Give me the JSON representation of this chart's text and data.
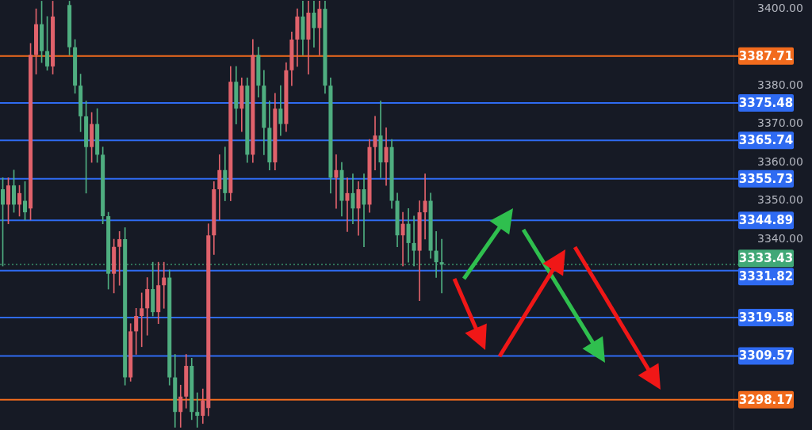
{
  "chart_data": {
    "type": "candlestick",
    "categories": [
      null,
      null,
      null,
      null,
      null,
      null,
      null,
      null,
      null,
      null,
      null,
      null,
      null,
      null,
      null,
      null,
      null,
      null,
      null,
      null,
      null,
      null,
      null,
      null,
      null,
      null,
      null,
      null,
      null,
      null,
      null,
      null,
      null,
      null,
      null,
      null,
      null,
      null,
      null,
      null,
      null,
      null,
      null,
      null,
      null,
      null,
      null,
      null,
      null,
      null,
      null,
      null,
      null,
      null,
      null,
      null,
      null,
      null,
      null,
      null,
      null,
      null,
      null,
      null,
      null,
      null,
      null,
      null,
      null,
      null,
      null,
      null,
      null,
      null,
      null,
      null,
      null,
      null,
      null,
      null,
      null,
      null,
      null,
      null,
      null,
      null,
      null,
      null,
      null,
      null,
      null,
      null,
      null,
      null,
      null,
      null,
      null,
      null,
      null,
      null,
      null,
      null,
      null,
      null,
      null,
      null,
      null,
      null,
      null,
      null,
      null,
      null,
      null,
      null,
      null,
      null,
      null,
      null,
      null,
      null,
      null,
      null,
      null,
      null,
      null,
      null,
      null,
      null,
      null,
      null,
      null,
      null
    ],
    "ohlc": [
      [
        3353,
        3356,
        3333,
        3349
      ],
      [
        3349,
        3356,
        3344,
        3354
      ],
      [
        3354,
        3358,
        3347,
        3349
      ],
      [
        3349,
        3354,
        3346,
        3352
      ],
      [
        3350,
        3355,
        3345,
        3347
      ],
      [
        3348,
        3391,
        3345,
        3388
      ],
      [
        3388,
        3400,
        3383,
        3396
      ],
      [
        3396,
        3402,
        3386,
        3389
      ],
      [
        3389,
        3398,
        3384,
        3385
      ],
      [
        3385,
        3402,
        3383,
        3398
      ],
      null,
      null,
      [
        3401,
        3402,
        3388,
        3390
      ],
      [
        3390,
        3392,
        3378,
        3380
      ],
      [
        3380,
        3383,
        3368,
        3372
      ],
      [
        3372,
        3376,
        3352,
        3364
      ],
      [
        3364,
        3373,
        3360,
        3370
      ],
      [
        3370,
        3374,
        3360,
        3362
      ],
      [
        3362,
        3364,
        3344,
        3346
      ],
      [
        3346,
        3347,
        3327,
        3331
      ],
      [
        3331,
        3340,
        3326,
        3338
      ],
      [
        3338,
        3342,
        3328,
        3340
      ],
      [
        3340,
        3343,
        3302,
        3304
      ],
      [
        3304,
        3318,
        3303,
        3316
      ],
      [
        3316,
        3322,
        3310,
        3320
      ],
      [
        3320,
        3326,
        3312,
        3322
      ],
      [
        3322,
        3330,
        3315,
        3327
      ],
      [
        3327,
        3334,
        3320,
        3321
      ],
      [
        3321,
        3334,
        3318,
        3328
      ],
      [
        3328,
        3334,
        3322,
        3330
      ],
      [
        3330,
        3332,
        3302,
        3304
      ],
      [
        3304,
        3310,
        3291,
        3295
      ],
      [
        3295,
        3302,
        3291,
        3299
      ],
      [
        3299,
        3310,
        3296,
        3307
      ],
      [
        3307,
        3309,
        3293,
        3295
      ],
      [
        3295,
        3300,
        3291,
        3294
      ],
      [
        3294,
        3301,
        3292,
        3298
      ],
      [
        3296,
        3344,
        3294,
        3341
      ],
      [
        3341,
        3355,
        3336,
        3353
      ],
      [
        3353,
        3362,
        3345,
        3358
      ],
      [
        3358,
        3364,
        3350,
        3352
      ],
      [
        3352,
        3385,
        3350,
        3381
      ],
      [
        3381,
        3385,
        3370,
        3374
      ],
      [
        3374,
        3382,
        3368,
        3380
      ],
      [
        3380,
        3382,
        3360,
        3362
      ],
      [
        3362,
        3392,
        3360,
        3388
      ],
      [
        3388,
        3390,
        3377,
        3380
      ],
      [
        3380,
        3384,
        3362,
        3369
      ],
      [
        3369,
        3376,
        3358,
        3360
      ],
      [
        3360,
        3378,
        3358,
        3374
      ],
      [
        3374,
        3380,
        3367,
        3370
      ],
      [
        3370,
        3386,
        3368,
        3384
      ],
      [
        3384,
        3394,
        3380,
        3392
      ],
      [
        3392,
        3400,
        3385,
        3398
      ],
      [
        3398,
        3402,
        3388,
        3392
      ],
      [
        3392,
        3402,
        3383,
        3399
      ],
      [
        3399,
        3402,
        3390,
        3395
      ],
      [
        3395,
        3402,
        3388,
        3400
      ],
      [
        3400,
        3402,
        3378,
        3380
      ],
      [
        3380,
        3382,
        3352,
        3356
      ],
      [
        3356,
        3362,
        3348,
        3358
      ],
      [
        3358,
        3360,
        3346,
        3350
      ],
      [
        3350,
        3356,
        3342,
        3352
      ],
      [
        3352,
        3357,
        3344,
        3348
      ],
      [
        3348,
        3355,
        3341,
        3353
      ],
      [
        3353,
        3357,
        3338,
        3349
      ],
      [
        3349,
        3366,
        3347,
        3364
      ],
      [
        3364,
        3372,
        3358,
        3367
      ],
      [
        3367,
        3376,
        3356,
        3360
      ],
      [
        3360,
        3369,
        3354,
        3364
      ],
      [
        3364,
        3366,
        3348,
        3350
      ],
      [
        3350,
        3352,
        3338,
        3341
      ],
      [
        3341,
        3347,
        3333,
        3344
      ],
      [
        3344,
        3348,
        3334,
        3339
      ],
      [
        3339,
        3346,
        3333,
        3337
      ],
      [
        3337,
        3350,
        3324,
        3347
      ],
      [
        3347,
        3357,
        3340,
        3350
      ],
      [
        3350,
        3352,
        3335,
        3337
      ],
      [
        3337,
        3342,
        3330,
        3334
      ],
      [
        3334,
        3340,
        3326,
        3333.43
      ],
      null,
      null,
      null,
      null,
      null,
      null,
      null,
      null,
      null,
      null,
      null,
      null,
      null,
      null,
      null,
      null,
      null,
      null,
      null,
      null,
      null,
      null,
      null,
      null,
      null,
      null,
      null,
      null,
      null,
      null,
      null,
      null,
      null,
      null,
      null,
      null,
      null,
      null,
      null,
      null,
      null,
      null,
      null,
      null,
      null,
      null,
      null,
      null,
      null,
      null,
      null,
      null
    ],
    "colors": [
      "#4fae80",
      "#e0626b",
      "#4fae80",
      "#e0626b",
      "#4fae80",
      "#e0626b",
      "#e0626b",
      "#4fae80",
      "#4fae80",
      "#e0626b",
      null,
      null,
      "#4fae80",
      "#4fae80",
      "#4fae80",
      "#4fae80",
      "#e0626b",
      "#4fae80",
      "#4fae80",
      "#4fae80",
      "#e0626b",
      "#e0626b",
      "#4fae80",
      "#e0626b",
      "#e0626b",
      "#e0626b",
      "#e0626b",
      "#4fae80",
      "#e0626b",
      "#e0626b",
      "#4fae80",
      "#4fae80",
      "#e0626b",
      "#e0626b",
      "#4fae80",
      "#4fae80",
      "#e0626b",
      "#e0626b",
      "#e0626b",
      "#e0626b",
      "#4fae80",
      "#e0626b",
      "#4fae80",
      "#e0626b",
      "#4fae80",
      "#e0626b",
      "#4fae80",
      "#4fae80",
      "#4fae80",
      "#e0626b",
      "#4fae80",
      "#e0626b",
      "#e0626b",
      "#e0626b",
      "#4fae80",
      "#e0626b",
      "#4fae80",
      "#e0626b",
      "#4fae80",
      "#4fae80",
      "#e0626b",
      "#4fae80",
      "#e0626b",
      "#4fae80",
      "#e0626b",
      "#4fae80",
      "#e0626b",
      "#e0626b",
      "#4fae80",
      "#e0626b",
      "#4fae80",
      "#4fae80",
      "#e0626b",
      "#4fae80",
      "#4fae80",
      "#e0626b",
      "#e0626b",
      "#4fae80",
      "#4fae80",
      "#4fae80",
      null,
      null,
      null,
      null,
      null,
      null,
      null,
      null,
      null,
      null,
      null,
      null,
      null,
      null,
      null,
      null,
      null,
      null,
      null,
      null,
      null,
      null,
      null,
      null,
      null,
      null,
      null,
      null,
      null,
      null,
      null,
      null,
      null,
      null,
      null,
      null,
      null,
      null,
      null,
      null,
      null,
      null,
      null,
      null,
      null,
      null,
      null,
      null,
      null,
      null,
      null,
      null
    ],
    "ylim": [
      3290.3,
      3402.3
    ],
    "yticks": [
      {
        "value": 3340,
        "label": "3340.00"
      },
      {
        "value": 3350,
        "label": "3350.00"
      },
      {
        "value": 3360,
        "label": "3360.00"
      },
      {
        "value": 3370,
        "label": "3370.00"
      },
      {
        "value": 3380,
        "label": "3380.00"
      },
      {
        "value": 3400,
        "label": "3400.00"
      }
    ],
    "ref_lines": [
      {
        "axis": "y",
        "value": 3387.71,
        "label": "3387.71",
        "color": "#f26b1d"
      },
      {
        "axis": "y",
        "value": 3375.48,
        "label": "3375.48",
        "color": "#2f6bf2"
      },
      {
        "axis": "y",
        "value": 3365.74,
        "label": "3365.74",
        "color": "#2f6bf2"
      },
      {
        "axis": "y",
        "value": 3355.73,
        "label": "3355.73",
        "color": "#2f6bf2"
      },
      {
        "axis": "y",
        "value": 3344.89,
        "label": "3344.89",
        "color": "#2f6bf2"
      },
      {
        "axis": "y",
        "value": 3333.43,
        "label": "3333.43",
        "color": "#40a877",
        "line_style": "dotted"
      },
      {
        "axis": "y",
        "value": 3331.82,
        "label": "3331.82",
        "color": "#2f6bf2"
      },
      {
        "axis": "y",
        "value": 3319.58,
        "label": "3319.58",
        "color": "#2f6bf2"
      },
      {
        "axis": "y",
        "value": 3309.57,
        "label": "3309.57",
        "color": "#2f6bf2"
      },
      {
        "axis": "y",
        "value": 3298.17,
        "label": "3298.17",
        "color": "#f26b1d"
      }
    ]
  }
}
